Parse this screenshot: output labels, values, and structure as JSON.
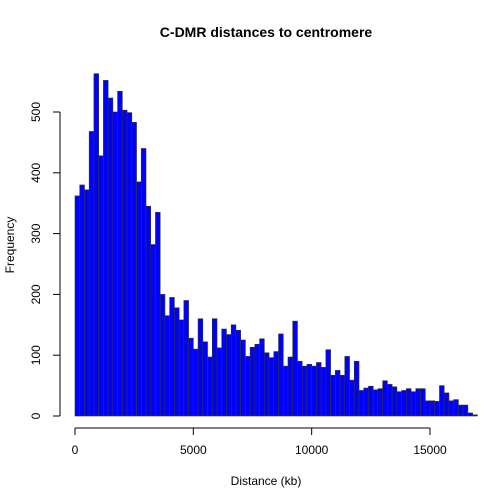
{
  "chart_data": {
    "type": "bar",
    "title": "C-DMR distances to centromere",
    "xlabel": "Distance (kb)",
    "ylabel": "Frequency",
    "bar_color": "#0000ff",
    "bar_border_color": "#333333",
    "bin_width": 200,
    "x_start": 0,
    "xlim": [
      0,
      16000
    ],
    "ylim": [
      0,
      560
    ],
    "xticks": [
      "0",
      "5000",
      "10000",
      "15000"
    ],
    "yticks": [
      "0",
      "100",
      "200",
      "300",
      "400",
      "500"
    ],
    "grid": false,
    "values": [
      362,
      380,
      372,
      468,
      563,
      428,
      552,
      523,
      500,
      534,
      503,
      499,
      483,
      385,
      440,
      345,
      282,
      335,
      200,
      165,
      195,
      178,
      158,
      190,
      128,
      110,
      160,
      122,
      97,
      160,
      112,
      143,
      134,
      150,
      141,
      125,
      98,
      113,
      118,
      127,
      104,
      96,
      106,
      135,
      82,
      97,
      156,
      90,
      82,
      85,
      82,
      88,
      80,
      109,
      67,
      75,
      67,
      98,
      59,
      90,
      42,
      46,
      49,
      43,
      45,
      58,
      52,
      48,
      40,
      42,
      45,
      40,
      45,
      45,
      25,
      25,
      24,
      50,
      38,
      25,
      27,
      18,
      18,
      5,
      2
    ]
  }
}
